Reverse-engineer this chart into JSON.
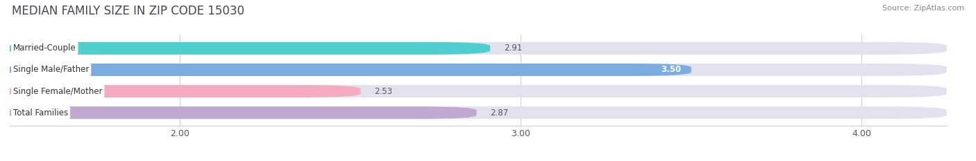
{
  "title": "MEDIAN FAMILY SIZE IN ZIP CODE 15030",
  "source": "Source: ZipAtlas.com",
  "categories": [
    "Married-Couple",
    "Single Male/Father",
    "Single Female/Mother",
    "Total Families"
  ],
  "values": [
    2.91,
    3.5,
    2.53,
    2.87
  ],
  "bar_colors": [
    "#4ecece",
    "#7aacdf",
    "#f5abc0",
    "#c0a8d0"
  ],
  "bar_bg_color": "#e2e2ee",
  "xlim_min": 1.5,
  "xlim_max": 4.25,
  "xticks": [
    2.0,
    3.0,
    4.0
  ],
  "xtick_labels": [
    "2.00",
    "3.00",
    "4.00"
  ],
  "title_fontsize": 12,
  "label_fontsize": 8.5,
  "value_fontsize": 8.5,
  "bar_height": 0.58,
  "fig_bg": "#ffffff",
  "grid_color": "#cccccc",
  "figsize": [
    14.06,
    2.33
  ],
  "dpi": 100
}
